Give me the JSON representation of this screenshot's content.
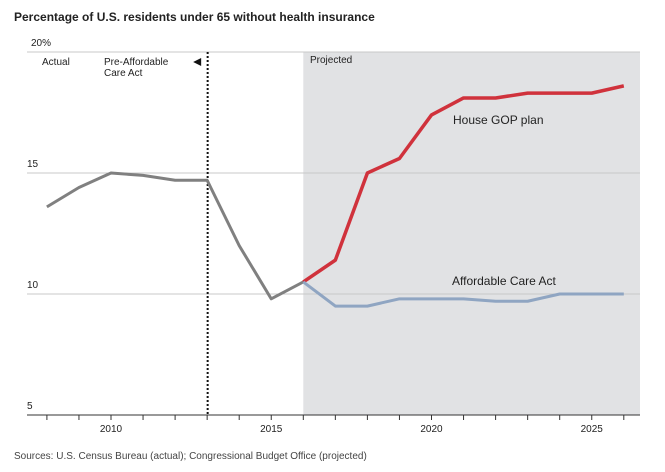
{
  "chart_data": {
    "type": "line",
    "title": "Percentage of U.S. residents under 65 without health insurance",
    "source": "Sources: U.S. Census Bureau (actual); Congressional Budget Office (projected)",
    "xlim": [
      2008,
      2026.5
    ],
    "ylim": [
      5,
      20
    ],
    "yticks": [
      5,
      10,
      15,
      20
    ],
    "ytick_labels": [
      "5",
      "10",
      "15",
      "20%"
    ],
    "xticks": [
      2010,
      2015,
      2020,
      2025
    ],
    "xtick_labels": [
      "2010",
      "2015",
      "2020",
      "2025"
    ],
    "grid": true,
    "projected_from": 2016,
    "aca_divider": 2013,
    "annotations": {
      "actual": "Actual",
      "pre_aca_line1": "Pre-Affordable",
      "pre_aca_line2": "Care Act",
      "projected": "Projected"
    },
    "series": [
      {
        "name": "Actual",
        "label": "",
        "color": "#808080",
        "x": [
          2008,
          2009,
          2010,
          2011,
          2012,
          2013,
          2014,
          2015,
          2016
        ],
        "values": [
          13.6,
          14.4,
          15.0,
          14.9,
          14.7,
          14.7,
          12.0,
          9.8,
          10.5
        ]
      },
      {
        "name": "House GOP plan",
        "label": "House GOP plan",
        "color": "#d0323c",
        "x": [
          2016,
          2017,
          2018,
          2019,
          2020,
          2021,
          2022,
          2023,
          2024,
          2025,
          2026
        ],
        "values": [
          10.5,
          11.4,
          15.0,
          15.6,
          17.4,
          18.1,
          18.1,
          18.3,
          18.3,
          18.3,
          18.6
        ]
      },
      {
        "name": "Affordable Care Act",
        "label": "Affordable Care Act",
        "color": "#8fa5c2",
        "x": [
          2016,
          2017,
          2018,
          2019,
          2020,
          2021,
          2022,
          2023,
          2024,
          2025,
          2026
        ],
        "values": [
          10.5,
          9.5,
          9.5,
          9.8,
          9.8,
          9.8,
          9.7,
          9.7,
          10.0,
          10.0,
          10.0
        ]
      }
    ]
  }
}
